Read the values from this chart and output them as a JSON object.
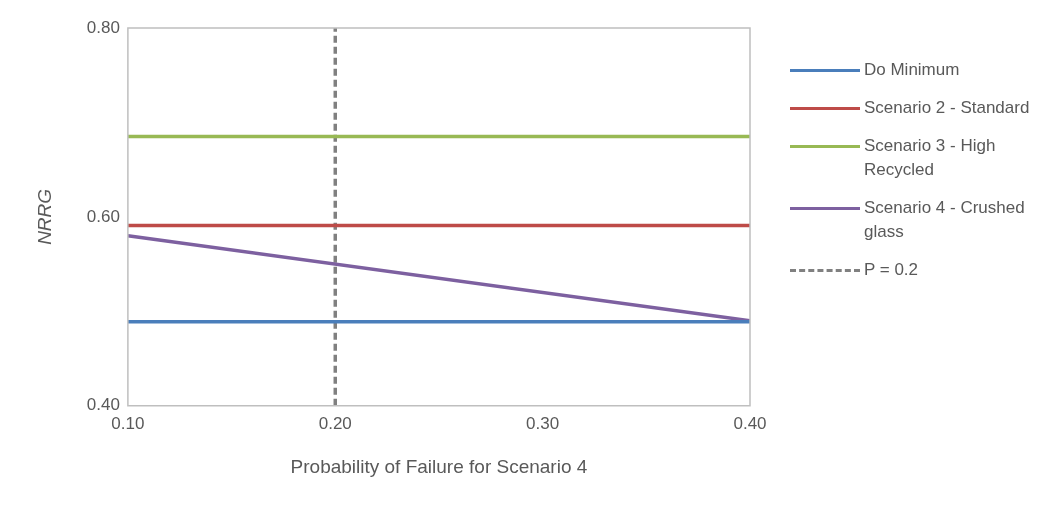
{
  "chart_data": {
    "type": "line",
    "xlabel": "Probability of Failure for Scenario 4",
    "ylabel": "NRRG",
    "x": [
      0.1,
      0.4
    ],
    "xlim": [
      0.1,
      0.4
    ],
    "xticks": [
      {
        "value": 0.1,
        "label": "0.10"
      },
      {
        "value": 0.2,
        "label": "0.20"
      },
      {
        "value": 0.3,
        "label": "0.30"
      },
      {
        "value": 0.4,
        "label": "0.40"
      }
    ],
    "ylim": [
      0.4,
      0.8
    ],
    "yticks": [
      {
        "value": 0.4,
        "label": "0.40"
      },
      {
        "value": 0.6,
        "label": "0.60"
      },
      {
        "value": 0.8,
        "label": "0.80"
      }
    ],
    "grid": false,
    "legend": "right",
    "marker": "none",
    "series": [
      {
        "name": "Do Minimum",
        "color": "#4a7ebb",
        "values": [
          0.489,
          0.489
        ]
      },
      {
        "name": "Scenario 2 - Standard",
        "color": "#be4b48",
        "values": [
          0.591,
          0.591
        ]
      },
      {
        "name": "Scenario 3 - High Recycled",
        "color": "#98b954",
        "values": [
          0.685,
          0.685
        ]
      },
      {
        "name": "Scenario 4 - Crushed glass",
        "color": "#7d60a0",
        "values": [
          0.58,
          0.49
        ]
      },
      {
        "name": "P = 0.2",
        "color": "#808080",
        "x": [
          0.2,
          0.2
        ],
        "values": [
          0.4,
          0.8
        ],
        "line_style": "dashed"
      }
    ]
  }
}
